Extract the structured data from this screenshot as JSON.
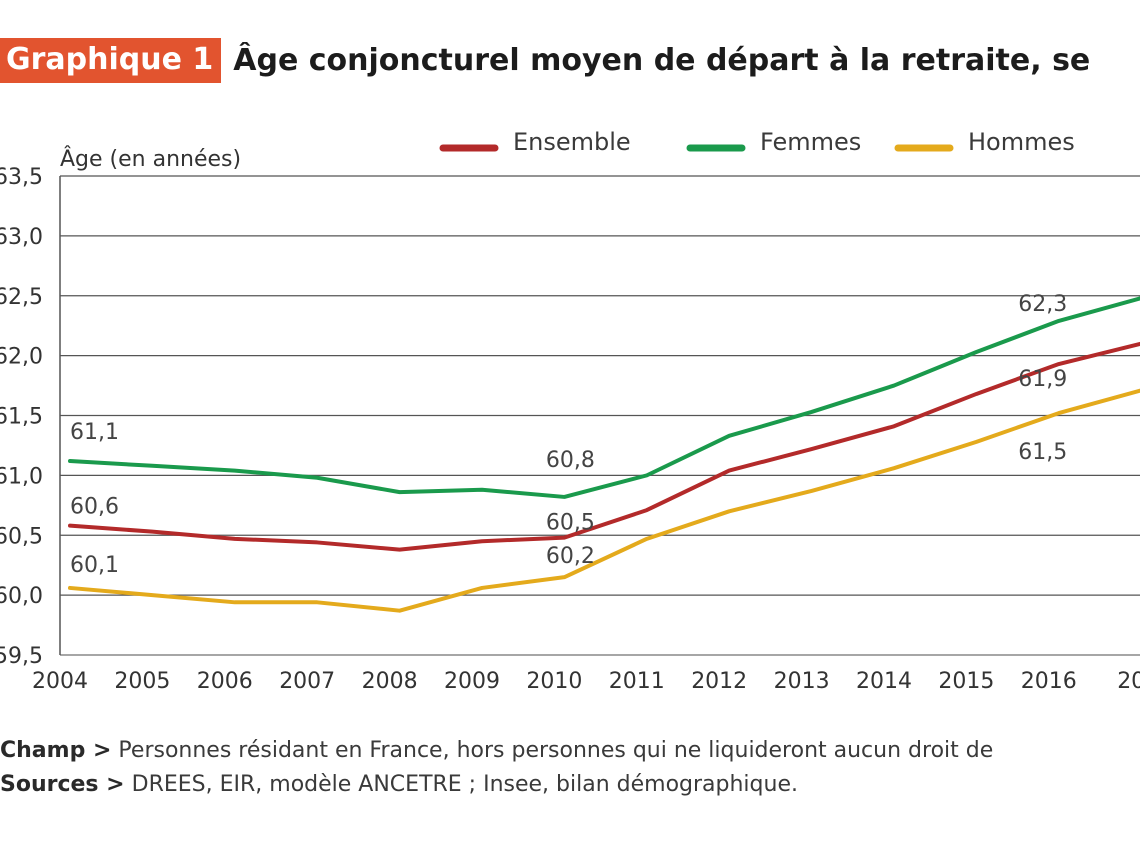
{
  "header": {
    "badge": "Graphique 1",
    "title": "Âge conjoncturel moyen de départ à la retraite, se"
  },
  "notes": {
    "champ_label": "Champ >",
    "champ_text": "Personnes résidant en France, hors personnes qui ne liquideront aucun droit de",
    "sources_label": "Sources >",
    "sources_text": "DREES, EIR, modèle ANCETRE ; Insee, bilan démographique."
  },
  "chart_data": {
    "type": "line",
    "ylabel": "Âge (en années)",
    "ylim": [
      59.5,
      63.5
    ],
    "yticks": [
      "59,5",
      "60,0",
      "60,5",
      "61,0",
      "61,5",
      "62,0",
      "62,5",
      "63,0",
      "63,5"
    ],
    "x": [
      "2004",
      "2005",
      "2006",
      "2007",
      "2008",
      "2009",
      "2010",
      "2011",
      "2012",
      "2013",
      "2014",
      "2015",
      "2016",
      "20"
    ],
    "grid": "horizontal",
    "legend_position": "top",
    "series": [
      {
        "name": "Ensemble",
        "color": "#b32a2a",
        "values": [
          60.58,
          60.53,
          60.47,
          60.44,
          60.38,
          60.45,
          60.48,
          60.71,
          61.04,
          61.22,
          61.41,
          61.68,
          61.93,
          62.1
        ]
      },
      {
        "name": "Femmes",
        "color": "#1a9a4c",
        "values": [
          61.12,
          61.08,
          61.04,
          60.98,
          60.86,
          60.88,
          60.82,
          61.0,
          61.33,
          61.53,
          61.75,
          62.03,
          62.29,
          62.48
        ]
      },
      {
        "name": "Hommes",
        "color": "#e4aa1c",
        "values": [
          60.06,
          60.0,
          59.94,
          59.94,
          59.87,
          60.06,
          60.15,
          60.47,
          60.7,
          60.87,
          61.06,
          61.28,
          61.52,
          61.71
        ]
      }
    ],
    "data_labels": [
      {
        "series": 1,
        "index": 0,
        "text": "61,1"
      },
      {
        "series": 0,
        "index": 0,
        "text": "60,6"
      },
      {
        "series": 2,
        "index": 0,
        "text": "60,1"
      },
      {
        "series": 1,
        "index": 6,
        "text": "60,8"
      },
      {
        "series": 0,
        "index": 6,
        "text": "60,5"
      },
      {
        "series": 2,
        "index": 6,
        "text": "60,2"
      },
      {
        "series": 1,
        "index": 12,
        "text": "62,3"
      },
      {
        "series": 0,
        "index": 12,
        "text": "61,9"
      },
      {
        "series": 2,
        "index": 12,
        "text": "61,5"
      }
    ]
  }
}
